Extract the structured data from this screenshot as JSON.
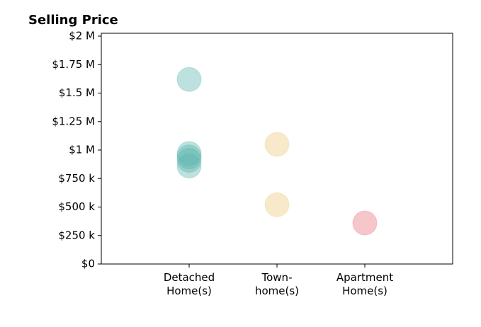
{
  "chart_data": {
    "type": "strip",
    "title": "Selling Price",
    "categories": [
      "Detached\nHome(s)",
      "Town-\nhome(s)",
      "Apartment\nHome(s)"
    ],
    "values": [
      [
        1620000,
        970000,
        940000,
        910000,
        860000
      ],
      [
        1050000,
        520000
      ],
      [
        360000
      ]
    ],
    "colors": [
      "#5ab4ac",
      "#ebc97a",
      "#e8707e"
    ],
    "ylim": [
      0,
      2025000
    ],
    "yticks": [
      {
        "value": 0,
        "label": "$0"
      },
      {
        "value": 250000,
        "label": "$250 k"
      },
      {
        "value": 500000,
        "label": "$500 k"
      },
      {
        "value": 750000,
        "label": "$750 k"
      },
      {
        "value": 1000000,
        "label": "$1 M"
      },
      {
        "value": 1250000,
        "label": "$1.25 M"
      },
      {
        "value": 1500000,
        "label": "$1.5 M"
      },
      {
        "value": 1750000,
        "label": "$1.75 M"
      },
      {
        "value": 2000000,
        "label": "$2 M"
      }
    ]
  }
}
